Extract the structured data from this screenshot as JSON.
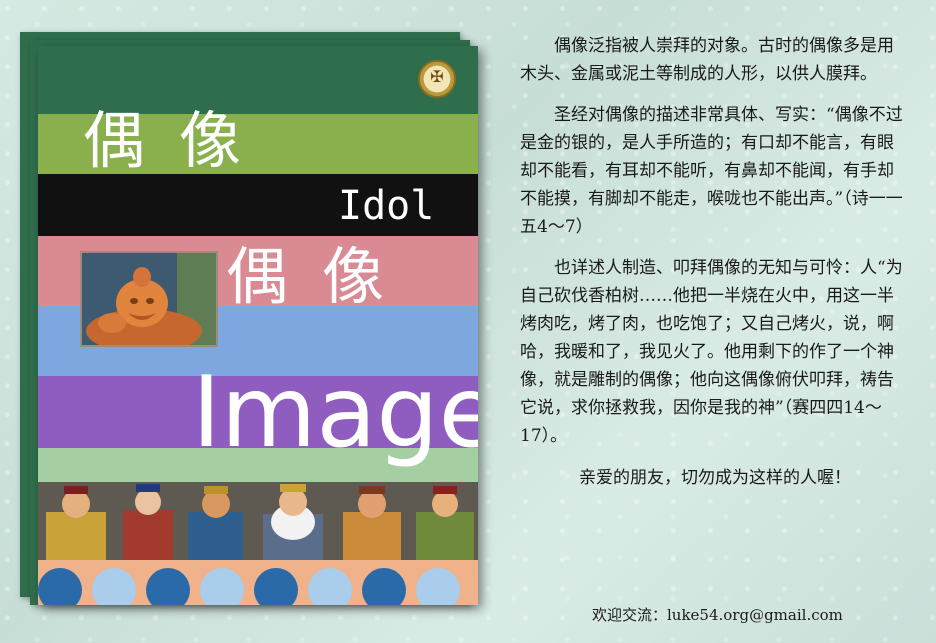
{
  "cover": {
    "title_cn_top": "偶像",
    "title_en_idol": "Idol",
    "title_cn_mid": "偶像",
    "title_en_image": "Image",
    "medallion_glyph": "✠",
    "colors": {
      "dark_green": "#2f6e4c",
      "olive": "#8ab04e",
      "black": "#111111",
      "pink": "#d98a93",
      "blue": "#7ea6df",
      "purple": "#8f5cc0",
      "mint": "#a5cfa2",
      "peach": "#f0b28a",
      "dot_dark": "#2a6aa8",
      "dot_light": "#a9cdea"
    }
  },
  "article": {
    "p1": "偶像泛指被人崇拜的对象。古时的偶像多是用木头、金属或泥土等制成的人形，以供人膜拜。",
    "p2": "圣经对偶像的描述非常具体、写实：“偶像不过是金的银的，是人手所造的；有口却不能言，有眼却不能看，有耳却不能听，有鼻却不能闻，有手却不能摸，有脚却不能走，喉咙也不能出声。”（诗一一五4～7）",
    "p3": "也详述人制造、叩拜偶像的无知与可怜：人“为自己砍伐香柏树……他把一半烧在火中，用这一半烤肉吃，烤了肉，也吃饱了；又自己烤火，说，啊哈，我暖和了，我见火了。他用剩下的作了一个神像，就是雕制的偶像；他向这偶像俯伏叩拜，祷告它说，求你拯救我，因你是我的神”（赛四四14～17）。",
    "closing": "亲爱的朋友，切勿成为这样的人喔！",
    "contact": "欢迎交流：luke54.org@gmail.com"
  }
}
